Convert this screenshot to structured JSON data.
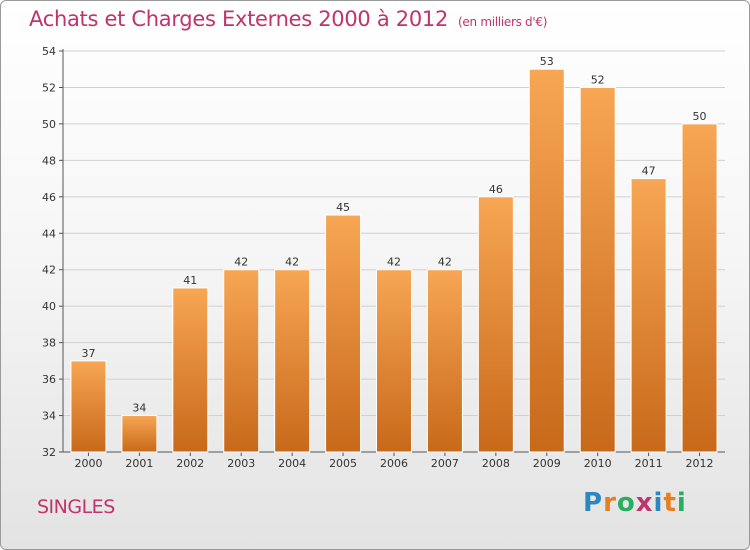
{
  "title": "Achats et Charges Externes 2000 à 2012",
  "subtitle": "(en milliers d'€)",
  "commune": "SINGLES",
  "logo": {
    "letters": [
      "P",
      "r",
      "o",
      "x",
      "i",
      "t",
      "i"
    ]
  },
  "colors": {
    "bar_top": "#f7a654",
    "bar_bottom": "#c8691a",
    "title": "#c0336b"
  },
  "chart_data": {
    "type": "bar",
    "title": "Achats et Charges Externes 2000 à 2012",
    "subtitle": "(en milliers d'€)",
    "categories": [
      "2000",
      "2001",
      "2002",
      "2003",
      "2004",
      "2005",
      "2006",
      "2007",
      "2008",
      "2009",
      "2010",
      "2011",
      "2012"
    ],
    "values": [
      37,
      34,
      41,
      42,
      42,
      45,
      42,
      42,
      46,
      53,
      52,
      47,
      50
    ],
    "ylim": [
      32,
      54
    ],
    "yticks": [
      32,
      34,
      36,
      38,
      40,
      42,
      44,
      46,
      48,
      50,
      52,
      54
    ],
    "grid": true,
    "legend": "none"
  }
}
